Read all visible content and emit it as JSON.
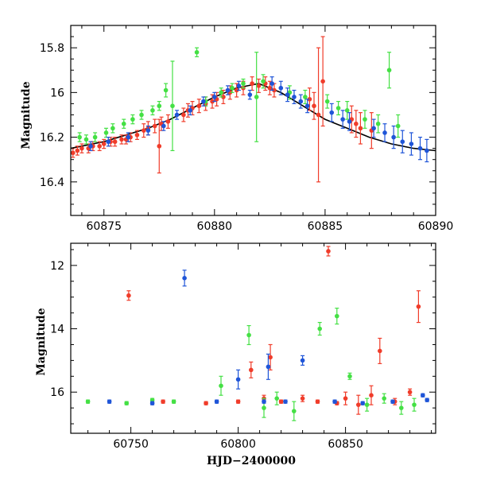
{
  "colors": {
    "red": "#f03c2a",
    "green": "#44e044",
    "blue": "#1f55d8",
    "model": "#000000"
  },
  "chart_data": [
    {
      "type": "scatter",
      "title": "",
      "xlabel": "",
      "ylabel": "Magnitude",
      "xlim": [
        60873.5,
        60890
      ],
      "ylim": [
        16.55,
        15.7
      ],
      "y_inverted": true,
      "xticks": [
        60875,
        60880,
        60885,
        60890
      ],
      "yticks": [
        15.8,
        16,
        16.2,
        16.4
      ],
      "tick_labels_x": [
        "60875",
        "60880",
        "60885",
        "60890"
      ],
      "tick_labels_y": [
        "15.8",
        "16",
        "16.2",
        "16.4"
      ],
      "grid": false,
      "legend": "none",
      "model_curve": {
        "x": [
          60873.5,
          60874,
          60875,
          60876,
          60877,
          60878,
          60879,
          60880,
          60880.5,
          60881,
          60881.5,
          60882,
          60882.5,
          60883,
          60883.5,
          60884,
          60884.5,
          60885,
          60885.5,
          60886,
          60887,
          60888,
          60889,
          60890
        ],
        "y": [
          16.25,
          16.24,
          16.22,
          16.19,
          16.16,
          16.12,
          16.07,
          16.02,
          16.0,
          15.98,
          15.97,
          15.96,
          15.98,
          16.0,
          16.03,
          16.06,
          16.09,
          16.12,
          16.14,
          16.16,
          16.2,
          16.23,
          16.25,
          16.26
        ]
      },
      "series": [
        {
          "color": "red",
          "x": [
            60873.6,
            60873.8,
            60874.0,
            60874.3,
            60874.5,
            60874.8,
            60875.0,
            60875.3,
            60875.5,
            60875.8,
            60876.0,
            60876.2,
            60876.5,
            60876.8,
            60877.0,
            60877.3,
            60877.6,
            60877.9,
            60878.6,
            60878.8,
            60879.0,
            60879.3,
            60879.6,
            60879.9,
            60880.1,
            60880.4,
            60880.7,
            60881.0,
            60881.3,
            60881.7,
            60882.0,
            60882.3,
            60882.5,
            60882.7,
            60884.3,
            60884.5,
            60884.7,
            60884.9,
            60886.2,
            60886.4,
            60886.6,
            60887.1,
            60877.5
          ],
          "y": [
            16.27,
            16.26,
            16.25,
            16.25,
            16.24,
            16.24,
            16.23,
            16.22,
            16.22,
            16.21,
            16.21,
            16.2,
            16.19,
            16.17,
            16.16,
            16.15,
            16.14,
            16.13,
            16.1,
            16.08,
            16.07,
            16.06,
            16.05,
            16.04,
            16.03,
            16.02,
            16.0,
            15.99,
            15.98,
            15.96,
            15.97,
            15.96,
            15.98,
            15.99,
            16.03,
            16.06,
            16.1,
            15.95,
            16.12,
            16.14,
            16.16,
            16.17,
            16.24
          ],
          "err": [
            0.02,
            0.02,
            0.02,
            0.02,
            0.02,
            0.02,
            0.02,
            0.02,
            0.02,
            0.02,
            0.02,
            0.02,
            0.02,
            0.03,
            0.03,
            0.03,
            0.03,
            0.03,
            0.03,
            0.03,
            0.03,
            0.03,
            0.03,
            0.03,
            0.03,
            0.03,
            0.03,
            0.03,
            0.03,
            0.03,
            0.03,
            0.03,
            0.03,
            0.03,
            0.05,
            0.06,
            0.3,
            0.2,
            0.06,
            0.06,
            0.07,
            0.08,
            0.12
          ]
        },
        {
          "color": "green",
          "x": [
            60873.9,
            60874.2,
            60874.6,
            60875.1,
            60875.4,
            60875.9,
            60876.3,
            60876.7,
            60877.2,
            60877.5,
            60877.8,
            60878.1,
            60879.2,
            60879.6,
            60880.3,
            60880.8,
            60881.3,
            60881.9,
            60882.2,
            60883.4,
            60884.1,
            60885.1,
            60885.6,
            60886.0,
            60886.8,
            60887.4,
            60887.9,
            60888.3
          ],
          "y": [
            16.2,
            16.21,
            16.2,
            16.18,
            16.16,
            16.14,
            16.12,
            16.1,
            16.08,
            16.06,
            15.99,
            16.06,
            15.82,
            16.04,
            16.0,
            15.98,
            15.96,
            16.02,
            15.95,
            16.0,
            16.02,
            16.04,
            16.07,
            16.08,
            16.12,
            16.14,
            15.9,
            16.15
          ],
          "err": [
            0.02,
            0.02,
            0.02,
            0.02,
            0.02,
            0.02,
            0.02,
            0.02,
            0.02,
            0.02,
            0.03,
            0.2,
            0.02,
            0.02,
            0.02,
            0.02,
            0.02,
            0.2,
            0.03,
            0.03,
            0.03,
            0.03,
            0.03,
            0.04,
            0.04,
            0.04,
            0.08,
            0.05
          ]
        },
        {
          "color": "blue",
          "x": [
            60874.4,
            60875.2,
            60876.1,
            60877.0,
            60877.7,
            60878.3,
            60878.9,
            60879.5,
            60880.0,
            60880.6,
            60881.1,
            60881.6,
            60882.6,
            60883.0,
            60883.3,
            60883.6,
            60883.9,
            60884.2,
            60885.3,
            60885.8,
            60886.1,
            60887.2,
            60887.7,
            60888.1,
            60888.5,
            60888.9,
            60889.3,
            60889.6
          ],
          "y": [
            16.24,
            16.22,
            16.2,
            16.17,
            16.15,
            16.1,
            16.08,
            16.04,
            16.02,
            15.99,
            15.97,
            16.01,
            15.96,
            15.98,
            16.01,
            16.02,
            16.04,
            16.06,
            16.09,
            16.12,
            16.13,
            16.16,
            16.18,
            16.2,
            16.22,
            16.23,
            16.25,
            16.26
          ],
          "err": [
            0.02,
            0.02,
            0.02,
            0.02,
            0.02,
            0.02,
            0.02,
            0.02,
            0.02,
            0.02,
            0.02,
            0.02,
            0.03,
            0.03,
            0.03,
            0.03,
            0.03,
            0.03,
            0.04,
            0.04,
            0.04,
            0.04,
            0.04,
            0.05,
            0.05,
            0.05,
            0.05,
            0.05
          ]
        }
      ]
    },
    {
      "type": "scatter",
      "title": "",
      "xlabel": "HJD−2400000",
      "ylabel": "Magnitude",
      "xlim": [
        60722,
        60892
      ],
      "ylim": [
        17.3,
        11.3
      ],
      "y_inverted": true,
      "xticks": [
        60750,
        60800,
        60850
      ],
      "yticks": [
        12,
        14,
        16
      ],
      "tick_labels_x": [
        "60750",
        "60800",
        "60850"
      ],
      "tick_labels_y": [
        "12",
        "14",
        "16"
      ],
      "grid": false,
      "legend": "none",
      "series": [
        {
          "color": "red",
          "x": [
            60749,
            60765,
            60785,
            60800,
            60806,
            60812,
            60815,
            60820,
            60830,
            60837,
            60842,
            60846,
            60850,
            60856,
            60862,
            60866,
            60873,
            60880,
            60884
          ],
          "y": [
            12.95,
            16.3,
            16.35,
            16.3,
            15.3,
            16.2,
            14.9,
            16.3,
            16.2,
            16.3,
            11.55,
            16.35,
            16.2,
            16.4,
            16.1,
            14.7,
            16.3,
            16.0,
            13.3
          ],
          "err": [
            0.15,
            0.05,
            0.05,
            0.05,
            0.25,
            0.1,
            0.4,
            0.05,
            0.1,
            0.05,
            0.15,
            0.05,
            0.2,
            0.3,
            0.3,
            0.4,
            0.1,
            0.1,
            0.5
          ]
        },
        {
          "color": "green",
          "x": [
            60730,
            60748,
            60760,
            60770,
            60792,
            60805,
            60812,
            60818,
            60826,
            60838,
            60846,
            60852,
            60860,
            60868,
            60876,
            60882
          ],
          "y": [
            16.3,
            16.35,
            16.25,
            16.3,
            15.8,
            14.2,
            16.5,
            16.2,
            16.6,
            14.0,
            13.6,
            15.5,
            16.4,
            16.2,
            16.5,
            16.4
          ],
          "err": [
            0.05,
            0.05,
            0.05,
            0.05,
            0.3,
            0.3,
            0.3,
            0.2,
            0.3,
            0.2,
            0.25,
            0.1,
            0.2,
            0.15,
            0.2,
            0.2
          ]
        },
        {
          "color": "blue",
          "x": [
            60740,
            60760,
            60775,
            60790,
            60800,
            60812,
            60814,
            60822,
            60830,
            60845,
            60858,
            60872,
            60886,
            60888
          ],
          "y": [
            16.3,
            16.35,
            12.4,
            16.3,
            15.6,
            16.3,
            15.2,
            16.3,
            15.0,
            16.3,
            16.35,
            16.3,
            16.1,
            16.25
          ],
          "err": [
            0.05,
            0.05,
            0.25,
            0.05,
            0.3,
            0.05,
            0.4,
            0.05,
            0.15,
            0.05,
            0.05,
            0.05,
            0.05,
            0.05
          ]
        }
      ]
    }
  ]
}
